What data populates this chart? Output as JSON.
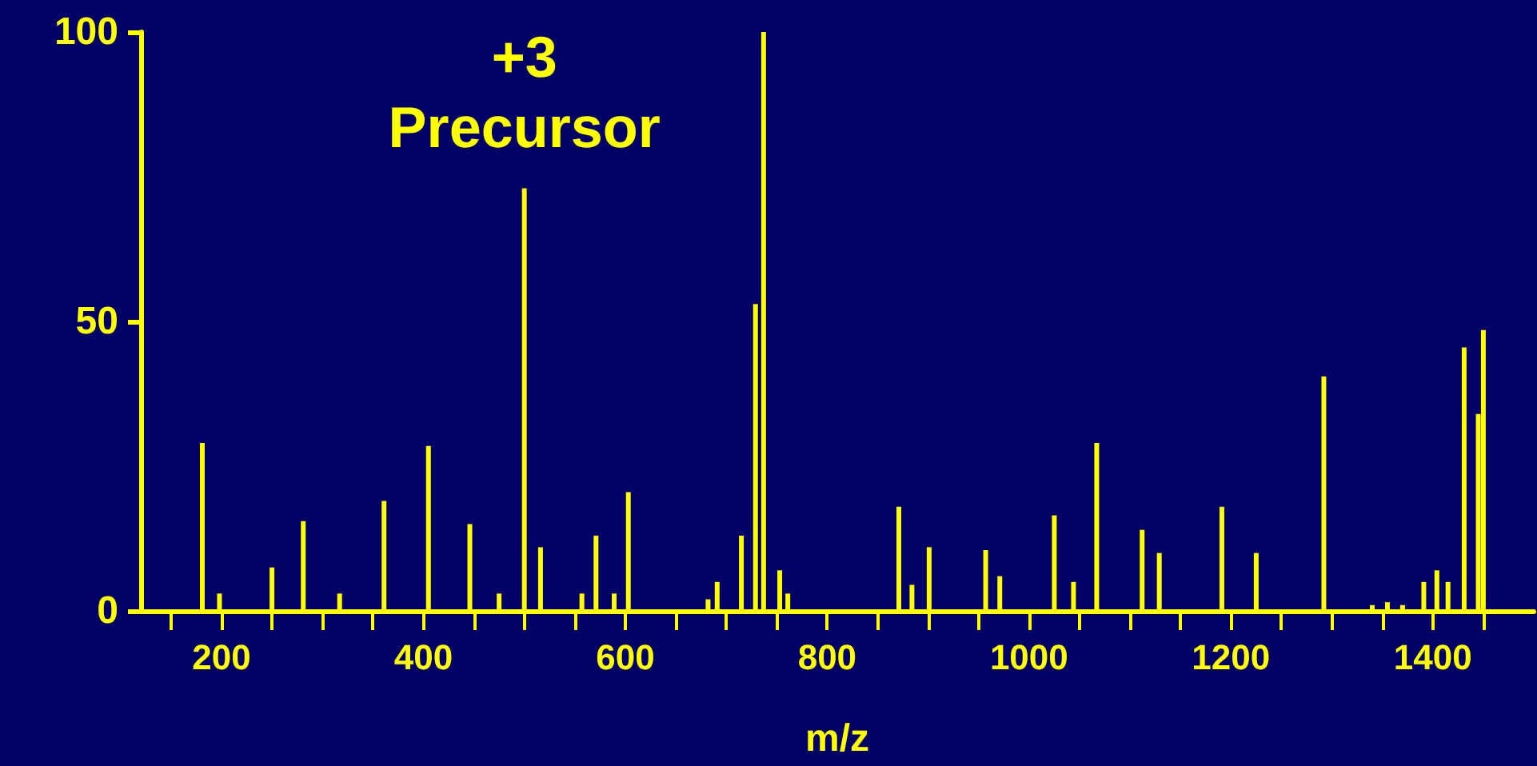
{
  "chart_data": {
    "type": "bar",
    "xlabel": "m/z",
    "annotations": [
      {
        "text": "+3\nPrecursor",
        "x": 500,
        "y": 73
      }
    ],
    "x": [
      181,
      198,
      250,
      281,
      317,
      361,
      405,
      446,
      475,
      500,
      516,
      557,
      571,
      589,
      603,
      682,
      691,
      715,
      729,
      737,
      753,
      761,
      871,
      884,
      901,
      957,
      971,
      1025,
      1044,
      1067,
      1112,
      1129,
      1191,
      1225,
      1292,
      1340,
      1355,
      1370,
      1391,
      1404,
      1415,
      1431,
      1445,
      1450
    ],
    "values": [
      29,
      3,
      7.5,
      15.5,
      3,
      19,
      28.5,
      15,
      3,
      73,
      11,
      3,
      13,
      3,
      20.5,
      2,
      5,
      13,
      53,
      100,
      7,
      3,
      18,
      4.5,
      11,
      10.5,
      6,
      16.5,
      5,
      29,
      14,
      10,
      18,
      10,
      40.5,
      1,
      1.5,
      1,
      5,
      7,
      5,
      45.5,
      34,
      48.5
    ],
    "color": "#ffff00",
    "xlim": [
      120,
      1500
    ],
    "xticks": [
      {
        "value": 150,
        "label": null
      },
      200,
      {
        "value": 250,
        "label": null
      },
      {
        "value": 300,
        "label": null
      },
      {
        "value": 350,
        "label": null
      },
      400,
      {
        "value": 450,
        "label": null
      },
      {
        "value": 500,
        "label": null
      },
      {
        "value": 550,
        "label": null
      },
      600,
      {
        "value": 650,
        "label": null
      },
      {
        "value": 700,
        "label": null
      },
      {
        "value": 750,
        "label": null
      },
      800,
      {
        "value": 850,
        "label": null
      },
      {
        "value": 900,
        "label": null
      },
      {
        "value": 950,
        "label": null
      },
      1000,
      {
        "value": 1050,
        "label": null
      },
      {
        "value": 1100,
        "label": null
      },
      {
        "value": 1150,
        "label": null
      },
      1200,
      {
        "value": 1250,
        "label": null
      },
      {
        "value": 1300,
        "label": null
      },
      {
        "value": 1350,
        "label": null
      },
      1400,
      {
        "value": 1450,
        "label": null
      }
    ],
    "ylim": [
      0,
      100
    ],
    "yticks": [
      0,
      50,
      100
    ],
    "grid": false
  }
}
